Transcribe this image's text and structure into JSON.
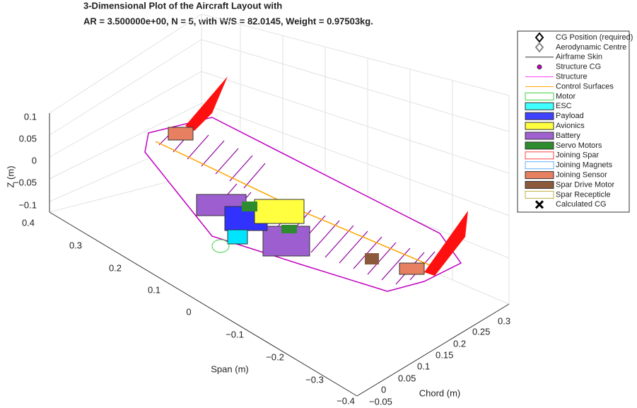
{
  "title": {
    "line1": "3-Dimensional Plot of the Aircraft Layout with",
    "line2": "AR = 3.500000e+00, N = 5, with W/S = 82.0145, Weight = 0.97503kg."
  },
  "axes": {
    "z": {
      "label": "Z (m)",
      "ticks": [
        "0.1",
        "0.05",
        "0",
        "−0.05",
        "−0.1"
      ]
    },
    "span": {
      "label": "Span (m)",
      "ticks": [
        "0.4",
        "0.3",
        "0.2",
        "0.1",
        "0",
        "−0.1",
        "−0.2",
        "−0.3",
        "−0.4"
      ]
    },
    "chord": {
      "label": "Chord (m)",
      "ticks": [
        "−0.05",
        "0",
        "0.05",
        "0.1",
        "0.15",
        "0.2",
        "0.25",
        "0.3"
      ]
    }
  },
  "legend": [
    "CG Position (required)",
    "Aerodynamic Centre",
    "Airframe Skin",
    "Structure CG",
    "Structure",
    "Control Surfaces",
    "Motor",
    "ESC",
    "Payload",
    "Avionics",
    "Battery",
    "Servo Motors",
    "Joining Spar",
    "Joining Magnets",
    "Joining Sensor",
    "Spar Drive Motor",
    "Spar Recepticle",
    "Calculated CG"
  ]
}
